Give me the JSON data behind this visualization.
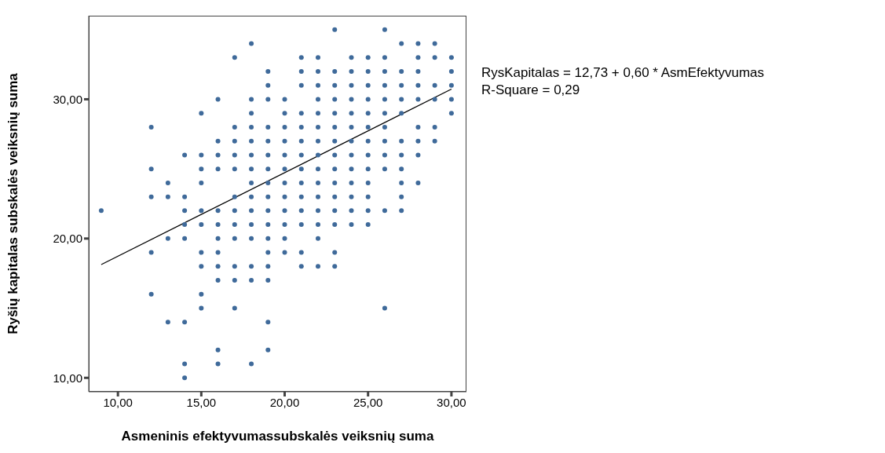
{
  "chart_data": {
    "type": "scatter",
    "xlabel": "Asmeninis efektyvumassubskalės veiksnių suma",
    "ylabel": "Ryšių kapitalas subskalės veiksnių suma",
    "xlim": [
      8.25,
      30.9
    ],
    "ylim": [
      9,
      36
    ],
    "xticks": [
      {
        "value": 10,
        "label": "10,00"
      },
      {
        "value": 15,
        "label": "15,00"
      },
      {
        "value": 20,
        "label": "20,00"
      },
      {
        "value": 25,
        "label": "25,00"
      },
      {
        "value": 30,
        "label": "30,00"
      }
    ],
    "yticks": [
      {
        "value": 10,
        "label": "10,00"
      },
      {
        "value": 20,
        "label": "20,00"
      },
      {
        "value": 30,
        "label": "30,00"
      }
    ],
    "grid": false,
    "annotations": [
      "RysKapitalas = 12,73 + 0,60 * AsmEfektyvumas",
      "R-Square = 0,29"
    ],
    "series": [
      {
        "marker": "circle",
        "color": "#3f6a9a",
        "x": [
          9,
          12,
          12,
          12,
          12,
          12,
          13,
          13,
          13,
          13,
          14,
          14,
          14,
          14,
          14,
          14,
          14,
          14,
          15,
          15,
          15,
          15,
          15,
          15,
          15,
          15,
          15,
          15,
          16,
          16,
          16,
          16,
          16,
          16,
          16,
          16,
          16,
          16,
          16,
          16,
          17,
          17,
          17,
          17,
          17,
          17,
          17,
          17,
          17,
          17,
          17,
          17,
          18,
          18,
          18,
          18,
          18,
          18,
          18,
          18,
          18,
          18,
          18,
          18,
          18,
          18,
          18,
          19,
          19,
          19,
          19,
          19,
          19,
          19,
          19,
          19,
          19,
          19,
          19,
          19,
          19,
          19,
          19,
          19,
          20,
          20,
          20,
          20,
          20,
          20,
          20,
          20,
          20,
          20,
          20,
          20,
          21,
          21,
          21,
          21,
          21,
          21,
          21,
          21,
          21,
          21,
          21,
          21,
          21,
          21,
          22,
          22,
          22,
          22,
          22,
          22,
          22,
          22,
          22,
          22,
          22,
          22,
          22,
          22,
          22,
          23,
          23,
          23,
          23,
          23,
          23,
          23,
          23,
          23,
          23,
          23,
          23,
          23,
          23,
          23,
          24,
          24,
          24,
          24,
          24,
          24,
          24,
          24,
          24,
          24,
          24,
          24,
          24,
          25,
          25,
          25,
          25,
          25,
          25,
          25,
          25,
          25,
          25,
          25,
          25,
          25,
          26,
          26,
          26,
          26,
          26,
          26,
          26,
          26,
          26,
          26,
          26,
          26,
          27,
          27,
          27,
          27,
          27,
          27,
          27,
          27,
          27,
          27,
          27,
          28,
          28,
          28,
          28,
          28,
          28,
          28,
          28,
          28,
          29,
          29,
          29,
          29,
          29,
          29,
          30,
          30,
          30,
          30,
          30
        ],
        "values": [
          22,
          28,
          25,
          23,
          19,
          16,
          24,
          23,
          20,
          14,
          26,
          23,
          22,
          21,
          20,
          14,
          11,
          10,
          29,
          26,
          25,
          24,
          22,
          21,
          19,
          18,
          16,
          15,
          30,
          27,
          26,
          25,
          22,
          21,
          20,
          19,
          18,
          17,
          12,
          11,
          33,
          28,
          27,
          26,
          25,
          23,
          22,
          21,
          20,
          18,
          17,
          15,
          34,
          30,
          29,
          28,
          27,
          26,
          25,
          24,
          23,
          22,
          21,
          20,
          18,
          17,
          11,
          32,
          31,
          30,
          28,
          27,
          26,
          25,
          24,
          23,
          22,
          21,
          20,
          19,
          18,
          17,
          14,
          12,
          30,
          29,
          28,
          27,
          26,
          25,
          24,
          23,
          22,
          21,
          20,
          19,
          33,
          32,
          31,
          29,
          28,
          27,
          26,
          25,
          24,
          23,
          22,
          21,
          19,
          18,
          33,
          32,
          31,
          30,
          29,
          28,
          27,
          26,
          25,
          24,
          23,
          22,
          21,
          20,
          18,
          35,
          32,
          31,
          30,
          29,
          28,
          27,
          26,
          25,
          24,
          23,
          22,
          21,
          19,
          18,
          33,
          32,
          31,
          30,
          29,
          28,
          27,
          26,
          25,
          24,
          23,
          22,
          21,
          33,
          32,
          31,
          30,
          29,
          28,
          27,
          26,
          25,
          24,
          23,
          22,
          21,
          35,
          33,
          32,
          31,
          30,
          29,
          28,
          27,
          26,
          25,
          22,
          15,
          34,
          32,
          31,
          30,
          29,
          27,
          26,
          25,
          24,
          23,
          22,
          34,
          33,
          32,
          31,
          30,
          28,
          27,
          26,
          24,
          34,
          33,
          31,
          30,
          28,
          27,
          33,
          32,
          31,
          30,
          29
        ]
      },
      {
        "type": "line",
        "color": "#000000",
        "x": [
          9,
          30
        ],
        "values": [
          18.13,
          30.73
        ]
      }
    ]
  }
}
